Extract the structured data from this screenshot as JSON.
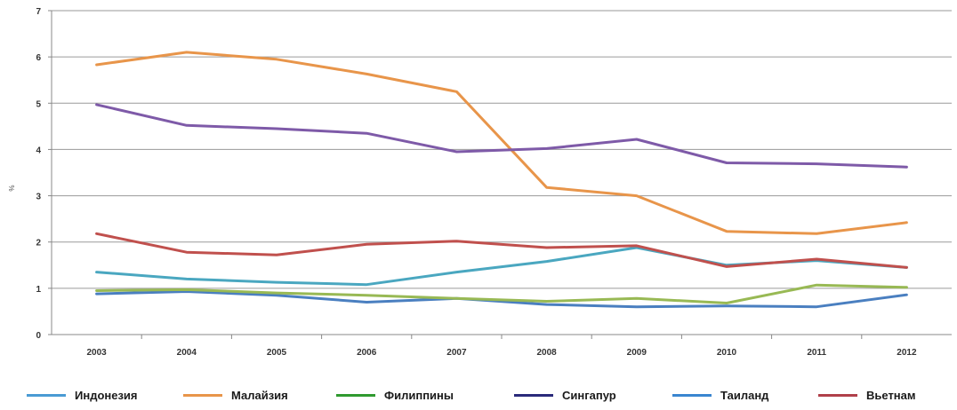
{
  "chart_data": {
    "type": "line",
    "title": "",
    "xlabel": "",
    "ylabel": "%",
    "ylim": [
      0,
      7
    ],
    "yticks": [
      "0",
      "1",
      "2",
      "3",
      "4",
      "5",
      "6",
      "7"
    ],
    "categories": [
      "2003",
      "2004",
      "2005",
      "2006",
      "2007",
      "2008",
      "2009",
      "2010",
      "2011",
      "2012"
    ],
    "grid": true,
    "legend_position": "bottom",
    "series": [
      {
        "name": "Индонезия",
        "color": "#4a7fc0",
        "values": [
          0.88,
          0.93,
          0.85,
          0.7,
          0.78,
          0.65,
          0.6,
          0.62,
          0.6,
          0.86
        ]
      },
      {
        "name": "Малайзия",
        "color": "#e8954a",
        "values": [
          5.83,
          6.1,
          5.95,
          5.63,
          5.25,
          3.18,
          3.0,
          2.23,
          2.18,
          2.42
        ]
      },
      {
        "name": "Филиппины",
        "color": "#98b954",
        "values": [
          0.95,
          0.97,
          0.9,
          0.85,
          0.78,
          0.72,
          0.78,
          0.68,
          1.07,
          1.02
        ]
      },
      {
        "name": "Сингапур",
        "color": "#7e5aa8",
        "values": [
          4.97,
          4.52,
          4.45,
          4.35,
          3.95,
          4.02,
          4.22,
          3.71,
          3.69,
          3.62
        ]
      },
      {
        "name": "Таиланд",
        "color": "#4aa7c0",
        "values": [
          1.35,
          1.2,
          1.13,
          1.08,
          1.35,
          1.58,
          1.88,
          1.5,
          1.6,
          1.45
        ]
      },
      {
        "name": "Вьетнам",
        "color": "#c0504d",
        "values": [
          2.18,
          1.78,
          1.72,
          1.95,
          2.02,
          1.88,
          1.92,
          1.47,
          1.63,
          1.45
        ]
      }
    ]
  },
  "legend": {
    "items": [
      {
        "label": "Индонезия",
        "color": "#4a9bd4"
      },
      {
        "label": "Малайзия",
        "color": "#e8954a"
      },
      {
        "label": "Филиппины",
        "color": "#2f9a2f"
      },
      {
        "label": "Сингапур",
        "color": "#2a2a7a"
      },
      {
        "label": "Таиланд",
        "color": "#3a86d0"
      },
      {
        "label": "Вьетнам",
        "color": "#b0404a"
      }
    ]
  }
}
